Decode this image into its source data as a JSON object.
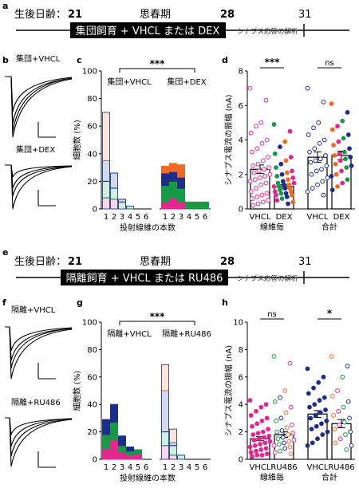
{
  "panels": {
    "a": "a",
    "b": "b",
    "c": "c",
    "d": "d",
    "e": "e",
    "f": "f",
    "g": "g",
    "h": "h"
  },
  "timeline_top": {
    "age_label": "生後日齢：",
    "day_start": "21",
    "puberty": "思春期",
    "day_mid": "28",
    "day_end": "31",
    "bar_label": "集団飼育 + VHCL または DEX",
    "analysis": "シナプス応答の解析"
  },
  "timeline_bottom": {
    "age_label": "生後日齢：",
    "day_start": "21",
    "puberty": "思春期",
    "day_mid": "28",
    "day_end": "31",
    "bar_label": "隔離飼育 + VHCL または RU486",
    "analysis": "シナプス応答の解析"
  },
  "traces_top": {
    "label_1": "集団+VHCL",
    "label_2": "集団+DEX"
  },
  "traces_bottom": {
    "label_1": "隔離+VHCL",
    "label_2": "隔離+RU486"
  },
  "colors": {
    "pink": "#e4268f",
    "green": "#169a45",
    "navy": "#1e2d8a",
    "orange": "#ef6a22",
    "light_blue": "#1f4fa8",
    "grey": "#777777"
  },
  "chart_data": [
    {
      "panel": "c",
      "type": "bar",
      "ylabel": "細胞数 (%)",
      "xlabel": "投射線維の本数",
      "ylim": [
        0,
        100
      ],
      "yticks": [
        "0",
        "20",
        "40",
        "60",
        "80",
        "100"
      ],
      "categories": [
        "1",
        "2",
        "3",
        "4",
        "5",
        "6"
      ],
      "group_labels": [
        "集団+VHCL",
        "集団+DEX"
      ],
      "significance": "***",
      "series_order": [
        "pink",
        "green",
        "navy",
        "orange"
      ],
      "groups": [
        {
          "name": "集団+VHCL",
          "style": "open",
          "stacks": [
            [
              8,
              12,
              15,
              35
            ],
            [
              7,
              8,
              11,
              0
            ],
            [
              0,
              5,
              2,
              0
            ],
            [
              0,
              2,
              0,
              0
            ],
            [
              0,
              0,
              0,
              0
            ],
            [
              0,
              0,
              0,
              0
            ]
          ]
        },
        {
          "name": "集団+DEX",
          "style": "filled",
          "stacks": [
            [
              5,
              12,
              9,
              5
            ],
            [
              8,
              12,
              7,
              6
            ],
            [
              5,
              10,
              8,
              9
            ],
            [
              0,
              5,
              0,
              0
            ],
            [
              0,
              5,
              0,
              0
            ],
            [
              0,
              5,
              0,
              0
            ]
          ]
        }
      ]
    },
    {
      "panel": "d",
      "type": "scatter",
      "ylabel": "シナプス電流の振幅 (nA)",
      "ylim": [
        0,
        8
      ],
      "yticks": [
        "0",
        "2",
        "4",
        "6",
        "8"
      ],
      "categories": [
        "VHCL",
        "DEX",
        "VHCL",
        "DEX"
      ],
      "group_labels": [
        "線維毎",
        "合計"
      ],
      "significance": [
        "***",
        "ns"
      ],
      "means": [
        2.3,
        1.3,
        3.0,
        3.1
      ],
      "sems": [
        0.25,
        0.1,
        0.3,
        0.25
      ],
      "fill": [
        "open",
        "filled",
        "open",
        "filled"
      ],
      "points": [
        [
          7.0,
          6.3,
          5.0,
          4.8,
          4.4,
          4.0,
          3.8,
          3.5,
          3.3,
          3.0,
          2.8,
          2.6,
          2.5,
          2.4,
          2.3,
          2.2,
          2.1,
          2.0,
          1.9,
          1.8,
          1.7,
          1.6,
          1.5,
          1.4,
          1.2,
          1.0,
          0.9,
          0.8,
          0.7,
          0.6,
          0.5,
          0.4,
          0.3,
          0.2
        ],
        [
          4.9,
          4.5,
          3.9,
          3.6,
          3.2,
          3.0,
          2.8,
          2.6,
          2.4,
          2.2,
          2.1,
          2.0,
          1.9,
          1.8,
          1.7,
          1.6,
          1.5,
          1.5,
          1.4,
          1.4,
          1.3,
          1.3,
          1.2,
          1.2,
          1.1,
          1.0,
          1.0,
          0.9,
          0.9,
          0.8,
          0.8,
          0.7,
          0.6,
          0.5,
          0.4,
          0.3
        ],
        [
          7.0,
          6.2,
          5.0,
          4.7,
          4.3,
          4.0,
          3.8,
          3.5,
          3.3,
          3.1,
          2.9,
          2.8,
          2.7,
          2.5,
          2.3,
          2.2,
          2.0,
          1.8,
          1.6,
          1.4,
          1.2,
          1.0,
          0.8
        ],
        [
          6.1,
          5.6,
          5.1,
          4.8,
          4.6,
          4.3,
          4.1,
          3.9,
          3.7,
          3.5,
          3.3,
          3.2,
          3.1,
          3.0,
          2.9,
          2.8,
          2.6,
          2.5,
          2.4,
          2.2,
          2.0,
          1.9,
          1.7,
          1.5,
          1.3,
          1.1
        ]
      ]
    },
    {
      "panel": "g",
      "type": "bar",
      "ylabel": "細胞数 (%)",
      "xlabel": "投射線維の本数",
      "ylim": [
        0,
        100
      ],
      "yticks": [
        "0",
        "20",
        "40",
        "60",
        "80",
        "100"
      ],
      "categories": [
        "1",
        "2",
        "3",
        "4",
        "5",
        "6"
      ],
      "group_labels": [
        "隔離+VHCL",
        "隔離+RU486"
      ],
      "significance": "***",
      "series_order": [
        "pink",
        "green",
        "navy",
        "orange"
      ],
      "groups": [
        {
          "name": "隔離+VHCL",
          "style": "filled",
          "stacks": [
            [
              8,
              10,
              11,
              0
            ],
            [
              14,
              13,
              13,
              0
            ],
            [
              5,
              5,
              7,
              0
            ],
            [
              3,
              3,
              3,
              0
            ],
            [
              4,
              3,
              0,
              0
            ],
            [
              0,
              0,
              0,
              0
            ]
          ]
        },
        {
          "name": "隔離+RU486",
          "style": "open",
          "stacks": [
            [
              10,
              10,
              30,
              19
            ],
            [
              3,
              7,
              2,
              10
            ],
            [
              0,
              3,
              0,
              0
            ],
            [
              0,
              0,
              0,
              0
            ],
            [
              0,
              0,
              0,
              0
            ],
            [
              0,
              0,
              0,
              0
            ]
          ]
        }
      ]
    },
    {
      "panel": "h",
      "type": "scatter",
      "ylabel": "シナプス電流の振幅 (nA)",
      "ylim": [
        0,
        10
      ],
      "yticks": [
        "0",
        "2",
        "4",
        "6",
        "8",
        "10"
      ],
      "categories": [
        "VHCL",
        "RU486",
        "VHCL",
        "RU486"
      ],
      "group_labels": [
        "線維毎",
        "合計"
      ],
      "significance": [
        "ns",
        "*"
      ],
      "means": [
        1.5,
        1.8,
        3.3,
        2.6
      ],
      "sems": [
        0.15,
        0.2,
        0.25,
        0.3
      ],
      "fill": [
        "filled",
        "open",
        "filled",
        "open"
      ],
      "points": [
        [
          4.3,
          4.0,
          3.8,
          3.5,
          3.2,
          3.0,
          2.8,
          2.6,
          2.4,
          2.2,
          2.0,
          1.9,
          1.8,
          1.7,
          1.6,
          1.5,
          1.4,
          1.3,
          1.2,
          1.1,
          1.0,
          0.9,
          0.8,
          0.7,
          0.6,
          0.5,
          0.4,
          0.3,
          0.3,
          0.2
        ],
        [
          7.5,
          7.0,
          5.0,
          4.5,
          4.2,
          3.8,
          3.4,
          3.0,
          2.8,
          2.5,
          2.3,
          2.1,
          2.0,
          1.9,
          1.8,
          1.6,
          1.5,
          1.4,
          1.3,
          1.2,
          1.1,
          1.0,
          0.9,
          0.8,
          0.6,
          0.5,
          0.4
        ],
        [
          6.6,
          6.0,
          5.6,
          5.2,
          4.8,
          4.5,
          4.3,
          4.0,
          3.8,
          3.6,
          3.4,
          3.2,
          3.0,
          2.8,
          2.6,
          2.4,
          2.2,
          2.0,
          1.8,
          1.5,
          1.2,
          1.0
        ],
        [
          7.5,
          6.8,
          6.0,
          5.0,
          4.6,
          4.2,
          3.8,
          3.5,
          3.2,
          3.0,
          2.7,
          2.5,
          2.2,
          2.0,
          1.8,
          1.5,
          1.2,
          1.0,
          0.7
        ]
      ]
    }
  ]
}
